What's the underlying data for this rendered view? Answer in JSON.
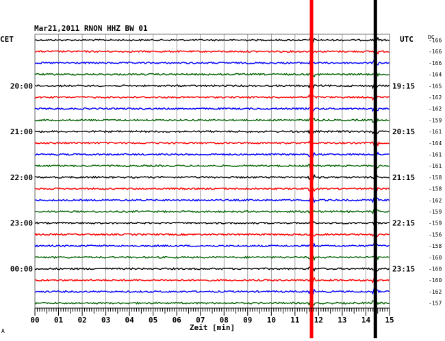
{
  "chart_data": {
    "type": "line",
    "title": "Mar21,2011   RNON HHZ BW 01",
    "xlabel": "Zeit [min]",
    "left_axis_label": "CET",
    "right_axis_label": "UTC",
    "dc_label": "DC",
    "x_range": [
      0,
      15
    ],
    "x_ticks": [
      "00",
      "01",
      "02",
      "03",
      "04",
      "05",
      "06",
      "07",
      "08",
      "09",
      "10",
      "11",
      "12",
      "13",
      "14",
      "15"
    ],
    "left_hour_labels": [
      "20:00",
      "21:00",
      "22:00",
      "23:00",
      "00:00"
    ],
    "right_hour_labels": [
      "19:15",
      "20:15",
      "21:15",
      "22:15",
      "23:15"
    ],
    "trace_colors": [
      "#000000",
      "#ff0000",
      "#0000ff",
      "#006400"
    ],
    "trace_count": 24,
    "dc_offsets": [
      "-166",
      "-166",
      "-166",
      "-164",
      "-165",
      "-162",
      "-162",
      "-159",
      "-161",
      "-164",
      "-161",
      "-161",
      "-158",
      "-158",
      "-162",
      "-159",
      "-159",
      "-156",
      "-158",
      "-160",
      "-160",
      "-160",
      "-162",
      "-157"
    ],
    "event_lines": [
      {
        "x_min": 11.7,
        "color": "#ff0000"
      },
      {
        "x_min": 14.4,
        "color": "#000000"
      }
    ],
    "grid": true,
    "footer_mark": "A"
  }
}
